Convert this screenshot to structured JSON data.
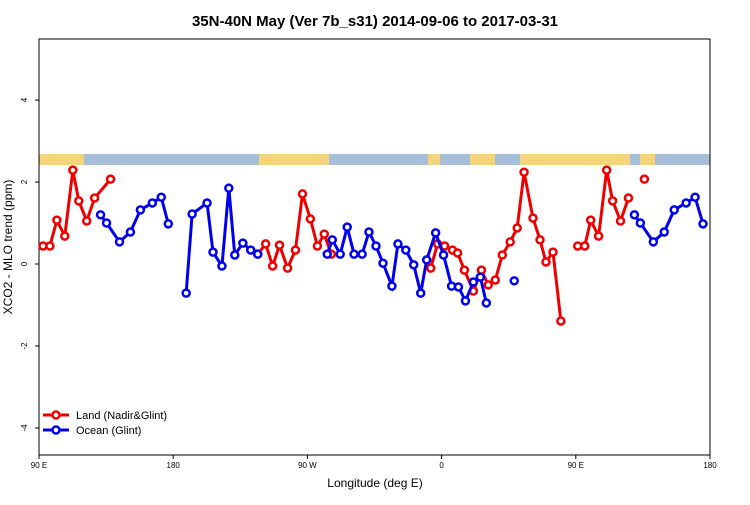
{
  "chart_data": {
    "type": "line",
    "title": "35N-40N May (Ver 7b_s31)   2014-09-06 to 2017-03-31",
    "x_label": "Longitude (deg E)",
    "y_label": "XCO2 - MLO trend (ppm)",
    "xlim": [
      90,
      540
    ],
    "ylim": [
      -4.66,
      5.49
    ],
    "xticks": [
      {
        "value": 90,
        "label": "90 E"
      },
      {
        "value": 180,
        "label": "180"
      },
      {
        "value": 270,
        "label": "90 W"
      },
      {
        "value": 360,
        "label": "0"
      },
      {
        "value": 450,
        "label": "90 E"
      },
      {
        "value": 540,
        "label": "180"
      }
    ],
    "yticks": [
      -4,
      -2,
      0,
      2,
      4
    ],
    "legend": "bottom-left",
    "series": [
      {
        "name": "Land (Nadir&Glint)",
        "color": "#ee0000",
        "x": [
          92.7,
          97.3,
          102,
          107.3,
          112.7,
          116.7,
          122,
          127.3,
          138,
          200,
          236.7,
          242,
          246.7,
          251.3,
          256.7,
          262,
          266.7,
          272,
          276.7,
          281.3,
          286,
          300,
          352.7,
          357.3,
          362,
          367.3,
          370.7,
          375.3,
          381.3,
          386.7,
          391.3,
          396,
          400.7,
          406,
          410.7,
          415.3,
          421.3,
          426,
          430,
          434.7,
          440,
          445,
          451.3,
          456,
          460,
          465.3,
          470.7,
          474.7,
          480,
          485.3,
          490,
          496
        ],
        "values": [
          0.44,
          0.44,
          1.07,
          0.68,
          2.29,
          1.54,
          1.05,
          1.61,
          2.07,
          null,
          0.24,
          0.49,
          -0.05,
          0.46,
          -0.1,
          0.34,
          1.71,
          1.1,
          0.44,
          0.73,
          0.24,
          null,
          -0.1,
          0.49,
          0.44,
          0.34,
          0.27,
          -0.15,
          -0.66,
          -0.15,
          -0.51,
          -0.39,
          0.22,
          0.54,
          0.88,
          2.24,
          1.12,
          0.59,
          0.05,
          0.29,
          -1.39,
          null,
          0.44,
          0.44,
          1.07,
          0.68,
          2.29,
          1.54,
          1.05,
          1.61,
          null,
          2.07
        ]
      },
      {
        "name": "Ocean (Glint)",
        "color": "#0000ee",
        "x": [
          131.3,
          135.3,
          144,
          151.3,
          158,
          166,
          172,
          176.7,
          182,
          188.7,
          192.7,
          202.7,
          206.7,
          212.7,
          217.3,
          221.3,
          226.7,
          232,
          236.7,
          260,
          283.3,
          286.7,
          292,
          296.7,
          301.3,
          306.7,
          311.3,
          316,
          320.7,
          326.7,
          330.7,
          336,
          341.3,
          346,
          350,
          356,
          361.3,
          366.7,
          371.3,
          376,
          381.3,
          386,
          390,
          400,
          408.7,
          450,
          489.3,
          493.3,
          502,
          509.3,
          516,
          524,
          530,
          535.3
        ],
        "values": [
          1.2,
          1.0,
          0.54,
          0.78,
          1.32,
          1.49,
          1.63,
          0.98,
          null,
          -0.71,
          1.22,
          1.49,
          0.29,
          -0.05,
          1.85,
          0.22,
          0.51,
          0.34,
          0.24,
          null,
          0.24,
          0.59,
          0.24,
          0.9,
          0.24,
          0.24,
          0.78,
          0.44,
          0.02,
          -0.54,
          0.49,
          0.34,
          -0.02,
          -0.71,
          0.1,
          0.76,
          0.22,
          -0.54,
          -0.56,
          -0.9,
          -0.44,
          -0.32,
          -0.95,
          null,
          -0.41,
          null,
          1.2,
          1.0,
          0.54,
          0.78,
          1.32,
          1.49,
          1.63,
          0.98
        ]
      }
    ]
  }
}
